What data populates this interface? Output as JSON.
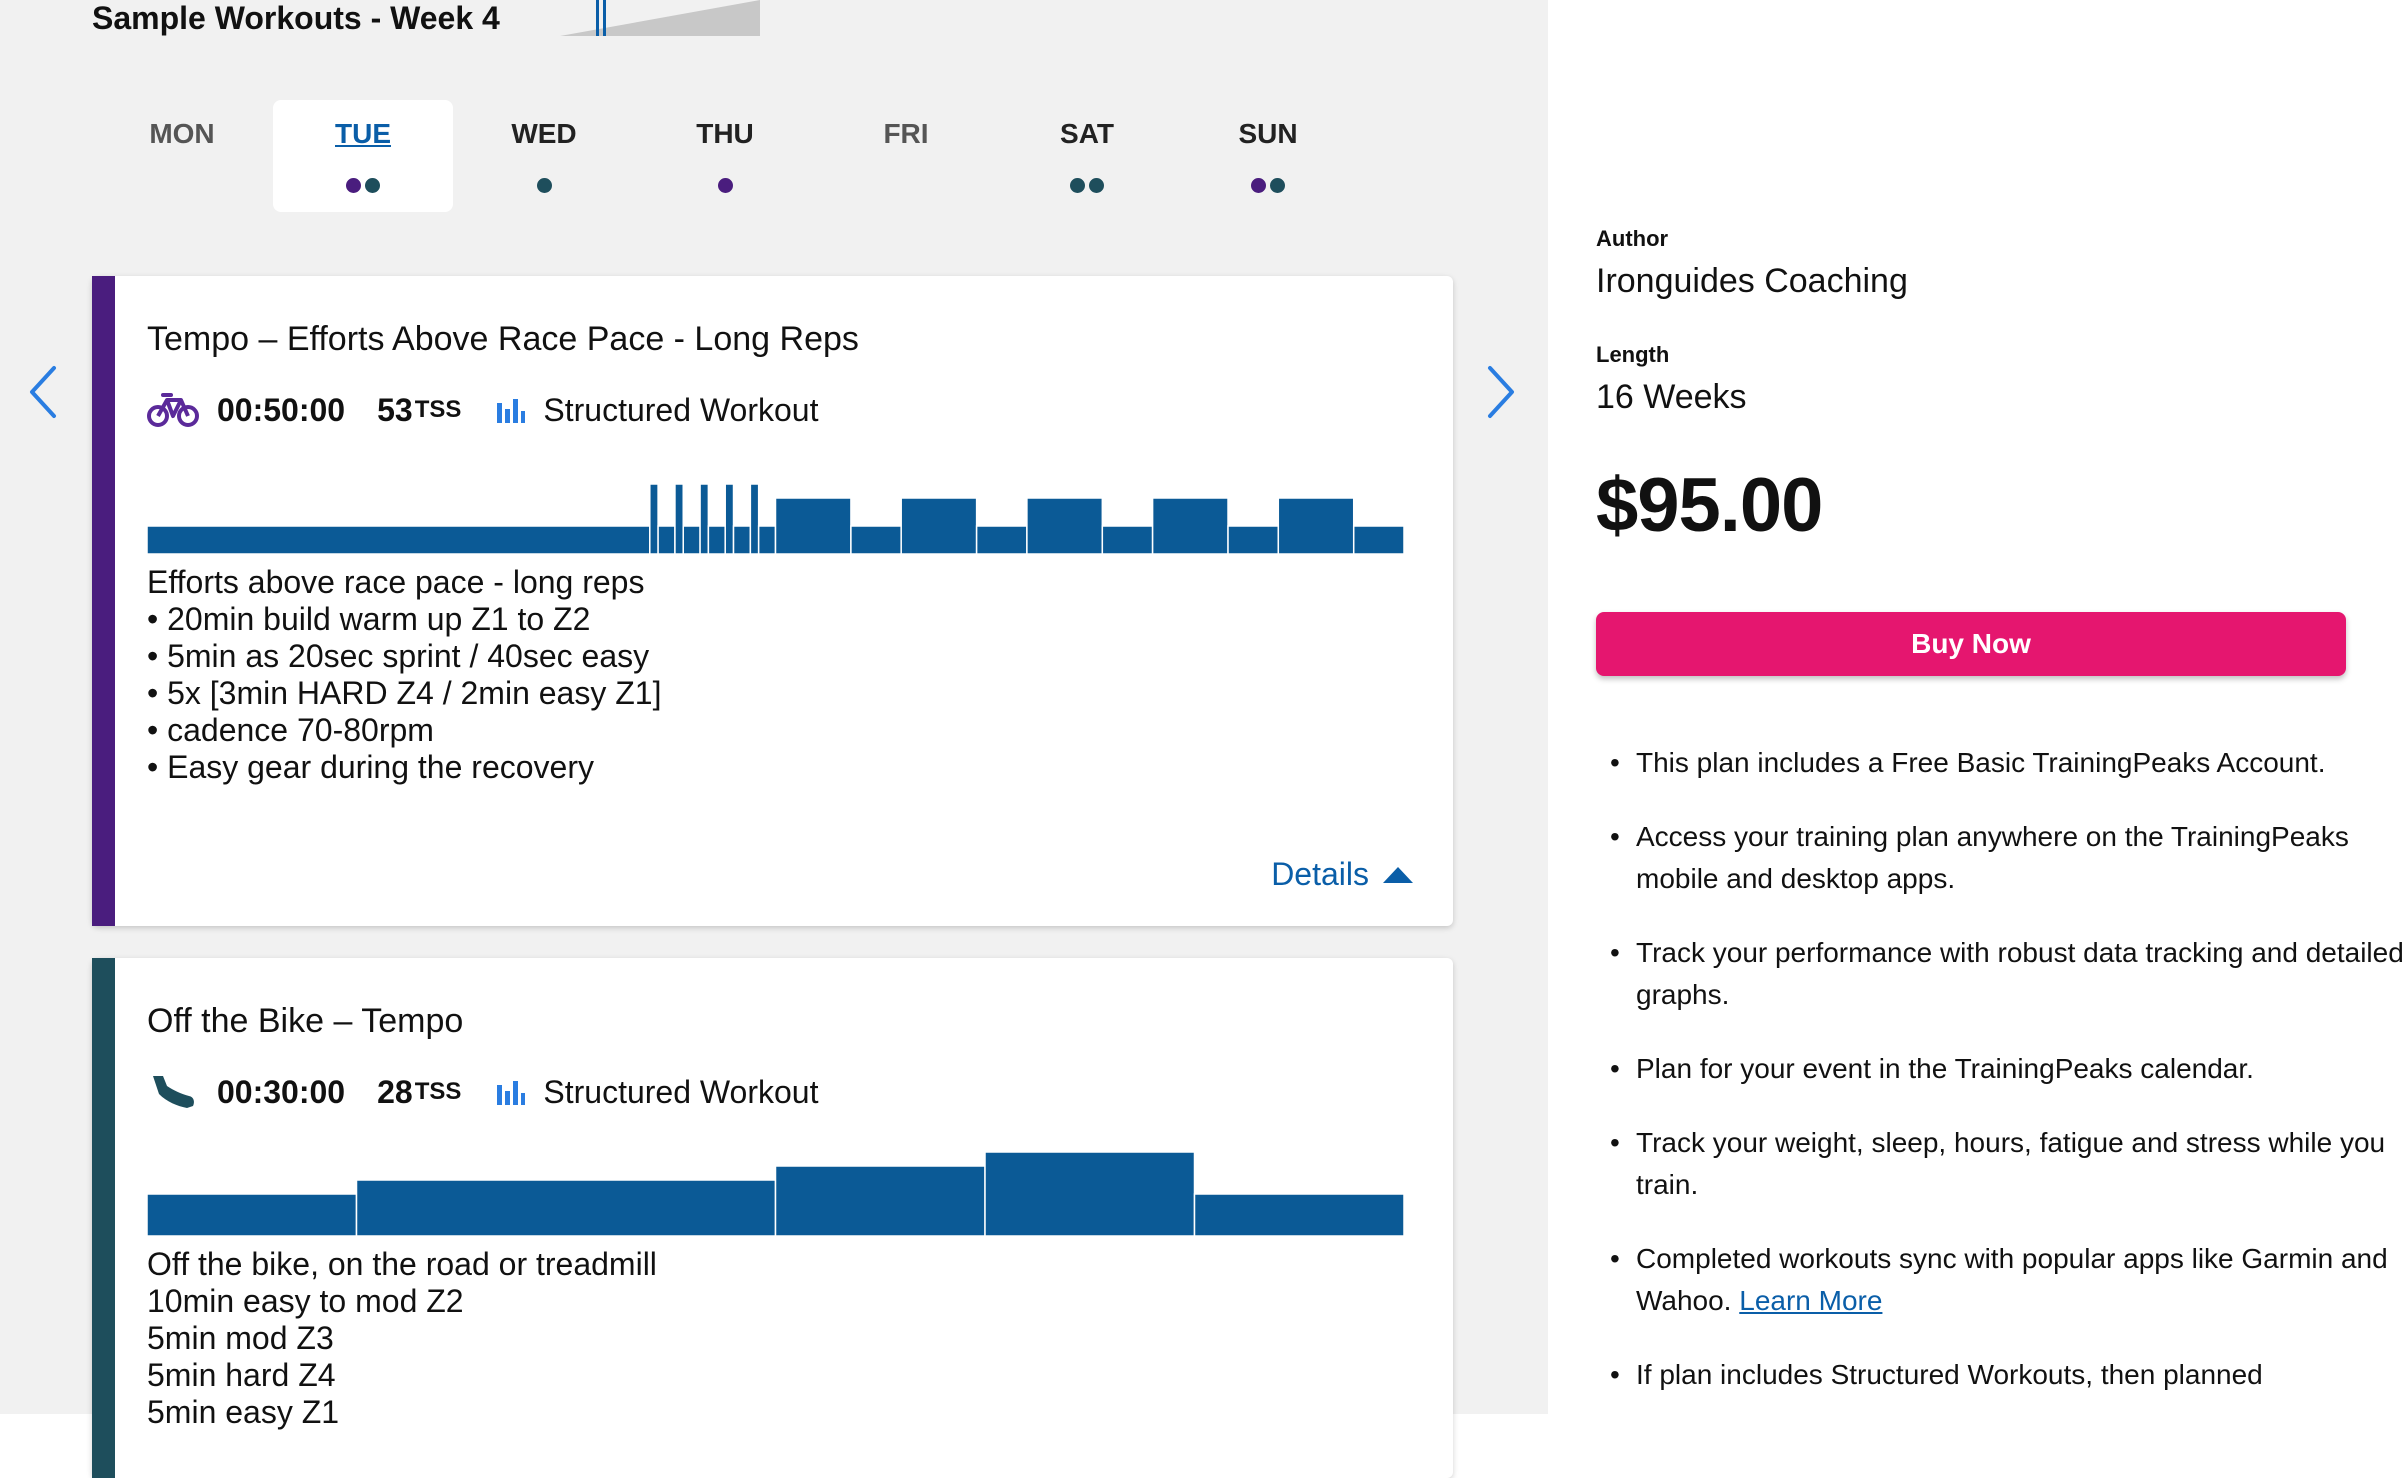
{
  "week": {
    "title": "Sample Workouts - Week 4"
  },
  "days": [
    {
      "label": "MON",
      "active": false,
      "muted": true,
      "dots": []
    },
    {
      "label": "TUE",
      "active": true,
      "muted": false,
      "dots": [
        "#4a1d7e",
        "#1e4e5c"
      ]
    },
    {
      "label": "WED",
      "active": false,
      "muted": false,
      "dots": [
        "#1e4e5c"
      ]
    },
    {
      "label": "THU",
      "active": false,
      "muted": false,
      "dots": [
        "#4a1d7e"
      ]
    },
    {
      "label": "FRI",
      "active": false,
      "muted": true,
      "dots": []
    },
    {
      "label": "SAT",
      "active": false,
      "muted": false,
      "dots": [
        "#1e4e5c",
        "#1e4e5c"
      ]
    },
    {
      "label": "SUN",
      "active": false,
      "muted": false,
      "dots": [
        "#4a1d7e",
        "#1e4e5c"
      ]
    }
  ],
  "workouts": [
    {
      "title": "Tempo – Efforts Above Race Pace - Long Reps",
      "sport_icon": "bike-icon",
      "duration": "00:50:00",
      "tss": "53",
      "tss_unit": "TSS",
      "type": "Structured Workout",
      "accent": "#4a1d7e",
      "profile": [
        {
          "min": 20,
          "level": 1
        },
        {
          "min": 0.33,
          "level": 4
        },
        {
          "min": 0.67,
          "level": 1
        },
        {
          "min": 0.33,
          "level": 4
        },
        {
          "min": 0.67,
          "level": 1
        },
        {
          "min": 0.33,
          "level": 4
        },
        {
          "min": 0.67,
          "level": 1
        },
        {
          "min": 0.33,
          "level": 4
        },
        {
          "min": 0.67,
          "level": 1
        },
        {
          "min": 0.33,
          "level": 4
        },
        {
          "min": 0.67,
          "level": 1
        },
        {
          "min": 3,
          "level": 3
        },
        {
          "min": 2,
          "level": 1
        },
        {
          "min": 3,
          "level": 3
        },
        {
          "min": 2,
          "level": 1
        },
        {
          "min": 3,
          "level": 3
        },
        {
          "min": 2,
          "level": 1
        },
        {
          "min": 3,
          "level": 3
        },
        {
          "min": 2,
          "level": 1
        },
        {
          "min": 3,
          "level": 3
        },
        {
          "min": 2,
          "level": 1
        }
      ],
      "description": [
        "Efforts above race pace - long reps",
        "• 20min build warm up Z1 to Z2",
        "• 5min as 20sec sprint / 40sec easy",
        "• 5x [3min HARD Z4 / 2min easy Z1]",
        "• cadence 70-80rpm",
        "• Easy gear during the recovery"
      ],
      "details_label": "Details"
    },
    {
      "title": "Off the Bike – Tempo",
      "sport_icon": "run-shoe-icon",
      "duration": "00:30:00",
      "tss": "28",
      "tss_unit": "TSS",
      "type": "Structured Workout",
      "accent": "#1e4e5c",
      "profile": [
        {
          "min": 5,
          "level": 2
        },
        {
          "min": 10,
          "level": 3
        },
        {
          "min": 5,
          "level": 4
        },
        {
          "min": 5,
          "level": 5
        },
        {
          "min": 5,
          "level": 2
        }
      ],
      "description": [
        "Off the bike, on the road or treadmill",
        "10min easy to mod Z2",
        "5min mod Z3",
        "5min hard Z4",
        "5min easy Z1"
      ]
    }
  ],
  "sidebar": {
    "author_label": "Author",
    "author": "Ironguides Coaching",
    "length_label": "Length",
    "length": "16 Weeks",
    "price": "$95.00",
    "buy_label": "Buy Now",
    "features": [
      "This plan includes a Free Basic TrainingPeaks Account.",
      "Access your training plan anywhere on the TrainingPeaks mobile and desktop apps.",
      "Track your performance with robust data tracking and detailed graphs.",
      "Plan for your event in the TrainingPeaks calendar.",
      "Track your weight, sleep, hours, fatigue and stress while you train.",
      "Completed workouts sync with popular apps like Garmin and Wahoo.",
      "If plan includes Structured Workouts, then planned"
    ],
    "learn_more": "Learn More"
  },
  "colors": {
    "accent_blue": "#0a5ea8",
    "buy_pink": "#e5166f",
    "bar_blue": "#0b5a96"
  }
}
